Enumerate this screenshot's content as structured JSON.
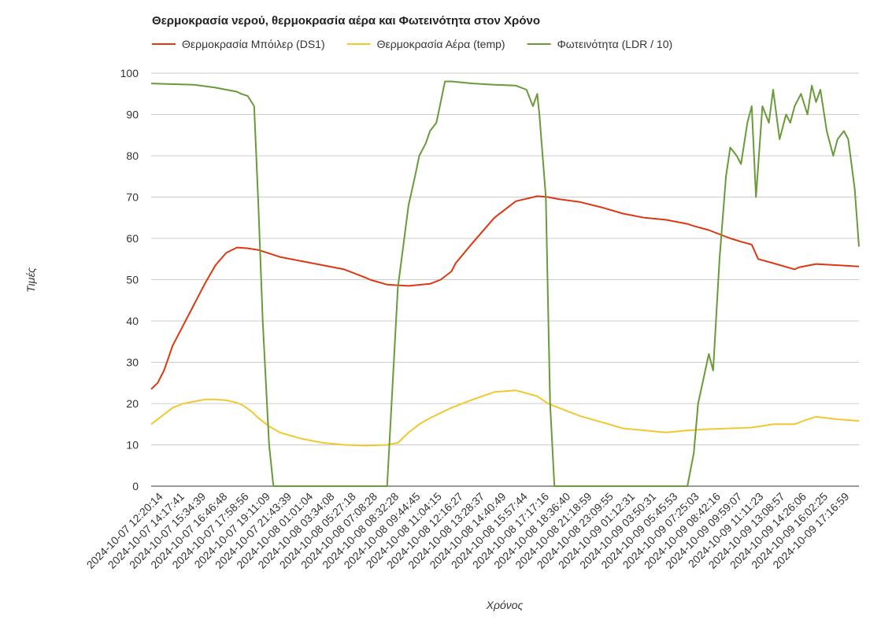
{
  "chart_data": {
    "type": "line",
    "title": "Θερμοκρασία νερού, θερμοκρασία αέρα και Φωτεινότητα στον Χρόνο",
    "xlabel": "Χρόνος",
    "ylabel": "Τιμές",
    "ylim": [
      0,
      100
    ],
    "yticks": [
      0,
      10,
      20,
      30,
      40,
      50,
      60,
      70,
      80,
      90,
      100
    ],
    "grid": true,
    "legend": "top-left",
    "x_tick_labels": [
      "2024-10-07 12:20:14",
      "2024-10-07 14:17:41",
      "2024-10-07 15:34:39",
      "2024-10-07 16:46:48",
      "2024-10-07 17:58:56",
      "2024-10-07 19:11:09",
      "2024-10-07 21:43:39",
      "2024-10-08 01:01:04",
      "2024-10-08 03:34:08",
      "2024-10-08 05:27:18",
      "2024-10-08 07:08:28",
      "2024-10-08 08:32:28",
      "2024-10-08 09:44:45",
      "2024-10-08 11:04:15",
      "2024-10-08 12:16:27",
      "2024-10-08 13:28:37",
      "2024-10-08 14:40:49",
      "2024-10-08 15:57:44",
      "2024-10-08 17:17:16",
      "2024-10-08 18:36:40",
      "2024-10-08 21:18:59",
      "2024-10-08 23:09:55",
      "2024-10-09 01:12:31",
      "2024-10-09 03:50:31",
      "2024-10-09 05:45:53",
      "2024-10-09 07:25:03",
      "2024-10-09 08:42:16",
      "2024-10-09 09:59:07",
      "2024-10-09 11:11:23",
      "2024-10-09 13:08:57",
      "2024-10-09 14:26:06",
      "2024-10-09 16:02:25",
      "2024-10-09 17:16:59"
    ],
    "x_index_range": [
      0,
      33
    ],
    "series": [
      {
        "name": "Θερμοκρασία Μπόιλερ (DS1)",
        "color": "#dc3912",
        "x": [
          0,
          0.3,
          0.6,
          0.8,
          1.0,
          1.3,
          1.6,
          2.0,
          2.5,
          3.0,
          3.5,
          4.0,
          4.5,
          5.0,
          6.0,
          7.0,
          8.0,
          9.0,
          10.0,
          10.2,
          11.0,
          12.0,
          13.0,
          13.5,
          14.0,
          14.2,
          15.0,
          16.0,
          17.0,
          18.0,
          18.5,
          19.0,
          20.0,
          21.0,
          22.0,
          23.0,
          24.0,
          25.0,
          25.3,
          26.0,
          27.0,
          27.5,
          28.0,
          28.3,
          29.0,
          30.0,
          30.2,
          31.0,
          32.0,
          33.0
        ],
        "y": [
          23.5,
          25,
          28,
          31,
          34,
          37,
          40,
          44,
          49,
          53.5,
          56.5,
          57.8,
          57.6,
          57.2,
          55.5,
          54.5,
          53.5,
          52.5,
          50.5,
          50,
          48.8,
          48.5,
          49,
          50,
          52,
          54,
          59,
          65,
          69,
          70.2,
          70,
          69.5,
          68.8,
          67.5,
          66,
          65,
          64.5,
          63.5,
          63,
          62,
          60,
          59.2,
          58.5,
          55,
          54,
          52.5,
          53,
          53.8,
          53.5,
          53.2
        ]
      },
      {
        "name": "Θερμοκρασία Αέρα (temp)",
        "color": "#f2c82f",
        "x": [
          0,
          0.5,
          1.0,
          1.5,
          2.0,
          2.5,
          3.0,
          3.5,
          4.0,
          4.3,
          4.7,
          5.0,
          5.5,
          6.0,
          7.0,
          8.0,
          9.0,
          10.0,
          11.0,
          11.5,
          12.0,
          12.5,
          13.0,
          14.0,
          15.0,
          16.0,
          17.0,
          17.5,
          18.0,
          18.5,
          19.0,
          20.0,
          21.0,
          22.0,
          23.0,
          24.0,
          25.0,
          26.0,
          27.0,
          28.0,
          29.0,
          30.0,
          30.5,
          31.0,
          32.0,
          33.0
        ],
        "y": [
          15,
          17,
          19,
          20,
          20.5,
          21,
          21,
          20.8,
          20.2,
          19.5,
          18,
          16.5,
          14.5,
          13,
          11.5,
          10.5,
          10,
          9.8,
          10,
          10.5,
          13,
          15,
          16.5,
          19,
          21,
          22.8,
          23.2,
          22.5,
          21.8,
          20,
          19,
          17,
          15.5,
          14,
          13.5,
          13,
          13.5,
          13.8,
          14,
          14.2,
          15,
          15,
          16,
          16.8,
          16.2,
          15.8
        ]
      },
      {
        "name": "Φωτεινότητα (LDR / 10)",
        "color": "#6a9a3a",
        "x": [
          0,
          2.0,
          3.0,
          4.0,
          4.2,
          4.5,
          4.8,
          5.0,
          5.2,
          5.5,
          5.7,
          6.0,
          8.0,
          10.0,
          10.3,
          10.6,
          11.0,
          11.5,
          12.0,
          12.3,
          12.5,
          12.8,
          13.0,
          13.3,
          13.7,
          14.0,
          15.0,
          16.0,
          17.0,
          17.5,
          17.8,
          18.0,
          18.1,
          18.4,
          18.6,
          18.8,
          19.0,
          20.0,
          22.0,
          24.0,
          25.0,
          25.3,
          25.5,
          26.0,
          26.2,
          26.5,
          26.8,
          27.0,
          27.3,
          27.5,
          27.8,
          28.0,
          28.2,
          28.5,
          28.8,
          29.0,
          29.3,
          29.6,
          29.8,
          30.0,
          30.3,
          30.6,
          30.8,
          31.0,
          31.2,
          31.5,
          31.8,
          32.0,
          32.3,
          32.5,
          32.8,
          33.0
        ],
        "y": [
          97.5,
          97.2,
          96.5,
          95.5,
          95,
          94.5,
          92,
          68,
          40,
          10,
          0,
          0,
          0,
          0,
          0,
          0,
          0,
          48,
          68,
          75,
          80,
          83,
          86,
          88,
          98,
          98,
          97.5,
          97.2,
          97,
          96,
          92,
          95,
          90,
          70,
          20,
          0,
          0,
          0,
          0,
          0,
          0,
          8,
          20,
          32,
          28,
          55,
          75,
          82,
          80,
          78,
          88,
          92,
          70,
          92,
          88,
          96,
          84,
          90,
          88,
          92,
          95,
          90,
          97,
          93,
          96,
          86,
          80,
          84,
          86,
          84,
          72,
          58
        ]
      }
    ]
  }
}
